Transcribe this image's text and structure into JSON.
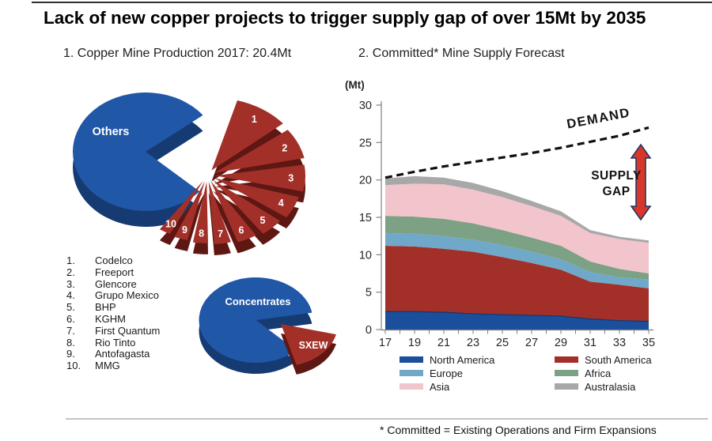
{
  "window": {
    "title": "Lack of new copper projects to trigger supply gap of over 15Mt by 2035"
  },
  "sections": {
    "left_heading": "1. Copper Mine Production 2017: 20.4Mt",
    "right_heading": "2. Committed* Mine Supply Forecast"
  },
  "footer": {
    "note": "* Committed = Existing Operations and Firm Expansions"
  },
  "pie1": {
    "others_label": "Others",
    "companies": [
      {
        "num": "1",
        "num_dot": "1.",
        "name": "Codelco"
      },
      {
        "num": "2",
        "num_dot": "2.",
        "name": "Freeport"
      },
      {
        "num": "3",
        "num_dot": "3.",
        "name": "Glencore"
      },
      {
        "num": "4",
        "num_dot": "4.",
        "name": "Grupo Mexico"
      },
      {
        "num": "5",
        "num_dot": "5.",
        "name": "BHP"
      },
      {
        "num": "6",
        "num_dot": "6.",
        "name": "KGHM"
      },
      {
        "num": "7",
        "num_dot": "7.",
        "name": "First Quantum"
      },
      {
        "num": "8",
        "num_dot": "8.",
        "name": "Rio Tinto"
      },
      {
        "num": "9",
        "num_dot": "9.",
        "name": "Antofagasta"
      },
      {
        "num": "10",
        "num_dot": "10.",
        "name": "MMG"
      }
    ]
  },
  "pie2": {
    "concentrates_label": "Concentrates",
    "sxew_label": "SXEW"
  },
  "area": {
    "unit_label": "(Mt)",
    "demand_label": "DEMAND",
    "supply_gap_line1": "SUPPLY",
    "supply_gap_line2": "GAP"
  },
  "legend": {
    "items": [
      {
        "label": "North America",
        "color": "#1B4F9C"
      },
      {
        "label": "South America",
        "color": "#A33028"
      },
      {
        "label": "Europe",
        "color": "#6FA8C9"
      },
      {
        "label": "Africa",
        "color": "#7DA184"
      },
      {
        "label": "Asia",
        "color": "#F2C4CB"
      },
      {
        "label": "Australasia",
        "color": "#A8A8A8"
      }
    ]
  },
  "colors": {
    "pie_blue": "#2157A7",
    "pie_blue_side": "#153B72",
    "pie_red": "#A23028",
    "pie_red_side": "#5E1713",
    "demand_line": "#111111",
    "gap_arrow": "#D8352B",
    "gap_arrow_outline": "#1F3864",
    "axis": "#808080"
  },
  "chart_data": [
    {
      "id": "top10_pie",
      "type": "pie",
      "title": "Copper Mine Production 2017: 20.4Mt",
      "total": "20.4Mt",
      "labels": [
        "Others",
        "Codelco",
        "Freeport",
        "Glencore",
        "Grupo Mexico",
        "BHP",
        "KGHM",
        "First Quantum",
        "Rio Tinto",
        "Antofagasta",
        "MMG"
      ],
      "values_pct_estimated": [
        55,
        8,
        6,
        5.5,
        5,
        4.5,
        4,
        3.5,
        3,
        3,
        2.5
      ]
    },
    {
      "id": "concentrates_pie",
      "type": "pie",
      "labels": [
        "Concentrates",
        "SXEW"
      ],
      "values_pct_estimated": [
        84,
        16
      ]
    },
    {
      "id": "supply_forecast",
      "type": "area",
      "title": "Committed* Mine Supply Forecast",
      "ylabel": "(Mt)",
      "ylim": [
        0,
        30
      ],
      "x": [
        17,
        19,
        21,
        23,
        25,
        27,
        29,
        31,
        33,
        35
      ],
      "y_ticks": [
        30,
        25,
        20,
        15,
        10,
        5,
        0
      ],
      "series": [
        {
          "name": "North America",
          "color": "#1B4F9C",
          "values": [
            2.4,
            2.4,
            2.3,
            2.1,
            2.0,
            1.9,
            1.8,
            1.4,
            1.2,
            1.1
          ]
        },
        {
          "name": "South America",
          "color": "#A33028",
          "values": [
            8.8,
            8.7,
            8.5,
            8.3,
            7.7,
            7.0,
            6.2,
            5.0,
            4.8,
            4.4
          ]
        },
        {
          "name": "Europe",
          "color": "#6FA8C9",
          "values": [
            1.7,
            1.7,
            1.7,
            1.6,
            1.6,
            1.5,
            1.4,
            1.3,
            1.0,
            1.2
          ]
        },
        {
          "name": "Africa",
          "color": "#7DA184",
          "values": [
            2.3,
            2.3,
            2.3,
            2.2,
            2.0,
            1.9,
            1.8,
            1.4,
            1.1,
            0.8
          ]
        },
        {
          "name": "Asia",
          "color": "#F2C4CB",
          "values": [
            4.1,
            4.4,
            4.6,
            4.5,
            4.4,
            4.2,
            4.0,
            3.8,
            4.0,
            4.1
          ]
        },
        {
          "name": "Australasia",
          "color": "#A8A8A8",
          "values": [
            0.9,
            1.0,
            0.9,
            0.9,
            0.8,
            0.7,
            0.6,
            0.4,
            0.3,
            0.3
          ]
        }
      ],
      "demand": {
        "name": "DEMAND",
        "values": [
          20.3,
          21.1,
          21.8,
          22.4,
          23.0,
          23.6,
          24.3,
          25.1,
          25.9,
          27.0
        ]
      },
      "annotations": [
        "DEMAND",
        "SUPPLY GAP"
      ],
      "legend_position": "bottom"
    }
  ]
}
